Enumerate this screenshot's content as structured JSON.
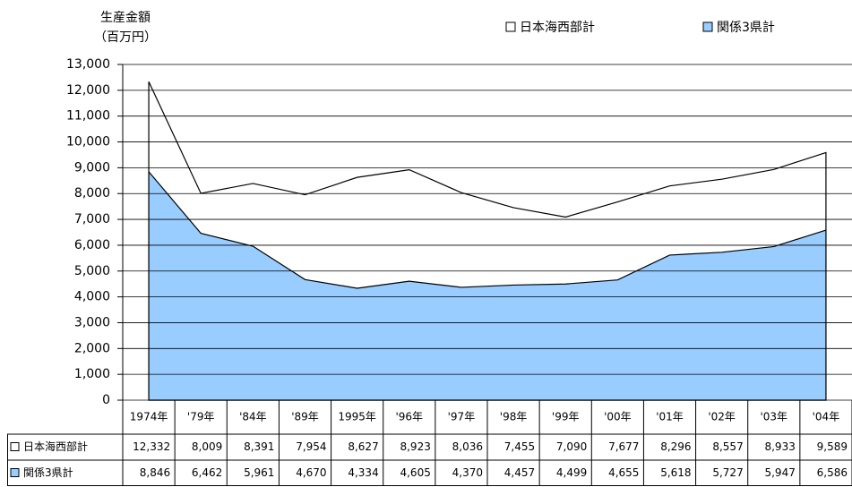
{
  "chart_data": {
    "type": "area",
    "y_label": [
      "生産金額",
      "（百万円）"
    ],
    "categories": [
      "1974年",
      "'79年",
      "'84年",
      "'89年",
      "1995年",
      "'96年",
      "'97年",
      "'98年",
      "'99年",
      "'00年",
      "'01年",
      "'02年",
      "'03年",
      "'04年"
    ],
    "series": [
      {
        "name": "日本海西部計",
        "color": "#ffffff",
        "values": [
          12332,
          8009,
          8391,
          7954,
          8627,
          8923,
          8036,
          7455,
          7090,
          7677,
          8296,
          8557,
          8933,
          9589
        ],
        "value_labels": [
          "12,332",
          "8,009",
          "8,391",
          "7,954",
          "8,627",
          "8,923",
          "8,036",
          "7,455",
          "7,090",
          "7,677",
          "8,296",
          "8,557",
          "8,933",
          "9,589"
        ]
      },
      {
        "name": "関係3県計",
        "color": "#99ccff",
        "values": [
          8846,
          6462,
          5961,
          4670,
          4334,
          4605,
          4370,
          4457,
          4499,
          4655,
          5618,
          5727,
          5947,
          6586
        ],
        "value_labels": [
          "8,846",
          "6,462",
          "5,961",
          "4,670",
          "4,334",
          "4,605",
          "4,370",
          "4,457",
          "4,499",
          "4,655",
          "5,618",
          "5,727",
          "5,947",
          "6,586"
        ]
      }
    ],
    "ylim": [
      0,
      13000
    ],
    "yticks": [
      0,
      {
        "value": 1000,
        "label": "1,000"
      },
      {
        "value": 2000,
        "label": "2,000"
      },
      {
        "value": 3000,
        "label": "3,000"
      },
      {
        "value": 4000,
        "label": "4,000"
      },
      {
        "value": 5000,
        "label": "5,000"
      },
      {
        "value": 6000,
        "label": "6,000"
      },
      {
        "value": 7000,
        "label": "7,000"
      },
      {
        "value": 8000,
        "label": "8,000"
      },
      {
        "value": 9000,
        "label": "9,000"
      },
      {
        "value": 10000,
        "label": "10,000"
      },
      {
        "value": 11000,
        "label": "11,000"
      },
      {
        "value": 12000,
        "label": "12,000"
      },
      {
        "value": 13000,
        "label": "13,000"
      }
    ],
    "grid": true
  }
}
